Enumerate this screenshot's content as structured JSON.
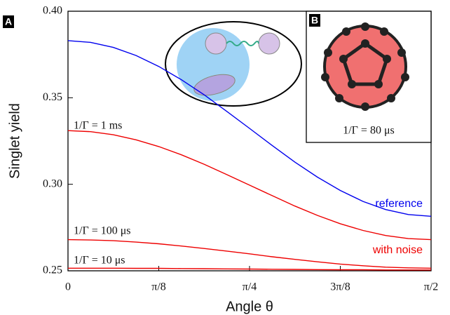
{
  "chart_data": {
    "type": "line",
    "x_label": "Angle θ",
    "y_label": "Singlet yield",
    "x": [
      0,
      0.0982,
      0.1963,
      0.2945,
      0.3927,
      0.4909,
      0.589,
      0.6872,
      0.7854,
      0.8836,
      0.9817,
      1.0799,
      1.1781,
      1.2763,
      1.3744,
      1.4726,
      1.5708
    ],
    "series": [
      {
        "name": "reference",
        "color": "#0000ee",
        "values": [
          0.383,
          0.382,
          0.3791,
          0.3744,
          0.3681,
          0.3604,
          0.3517,
          0.3421,
          0.3323,
          0.3224,
          0.3128,
          0.3041,
          0.2964,
          0.2901,
          0.2854,
          0.2825,
          0.2815
        ]
      },
      {
        "name": "1/Γ = 1 ms",
        "color": "#ee0000",
        "values": [
          0.331,
          0.3304,
          0.3286,
          0.3257,
          0.3218,
          0.317,
          0.3116,
          0.3056,
          0.2995,
          0.2934,
          0.2874,
          0.282,
          0.2772,
          0.2733,
          0.2704,
          0.2686,
          0.268
        ]
      },
      {
        "name": "1/Γ = 100 μs",
        "color": "#ee0000",
        "values": [
          0.268,
          0.2678,
          0.2674,
          0.2666,
          0.2656,
          0.2643,
          0.2629,
          0.2614,
          0.2598,
          0.2581,
          0.2566,
          0.2552,
          0.2539,
          0.2529,
          0.2521,
          0.2517,
          0.2515
        ]
      },
      {
        "name": "1/Γ = 10 μs",
        "color": "#ee0000",
        "values": [
          0.2515,
          0.2515,
          0.2515,
          0.2514,
          0.2514,
          0.2513,
          0.2512,
          0.2511,
          0.251,
          0.2509,
          0.2508,
          0.2507,
          0.2506,
          0.2506,
          0.2505,
          0.2505,
          0.2505
        ]
      }
    ],
    "annotation": "with noise",
    "panel_a": "A",
    "panel_b": "B",
    "inset_label": "1/Γ = 80 μs",
    "xlim": [
      0,
      1.5708
    ],
    "xticks": [
      0,
      {
        "value": 0.3927,
        "label": "π/8"
      },
      {
        "value": 0.7854,
        "label": "π/4"
      },
      {
        "value": 1.1781,
        "label": "3π/8"
      },
      {
        "value": 1.5708,
        "label": "π/2"
      }
    ],
    "ylim": [
      0.25,
      0.4
    ],
    "yticks": [
      0.25,
      {
        "value": 0.3,
        "label": "0.30"
      },
      0.35,
      {
        "value": 0.4,
        "label": "0.40"
      }
    ]
  }
}
